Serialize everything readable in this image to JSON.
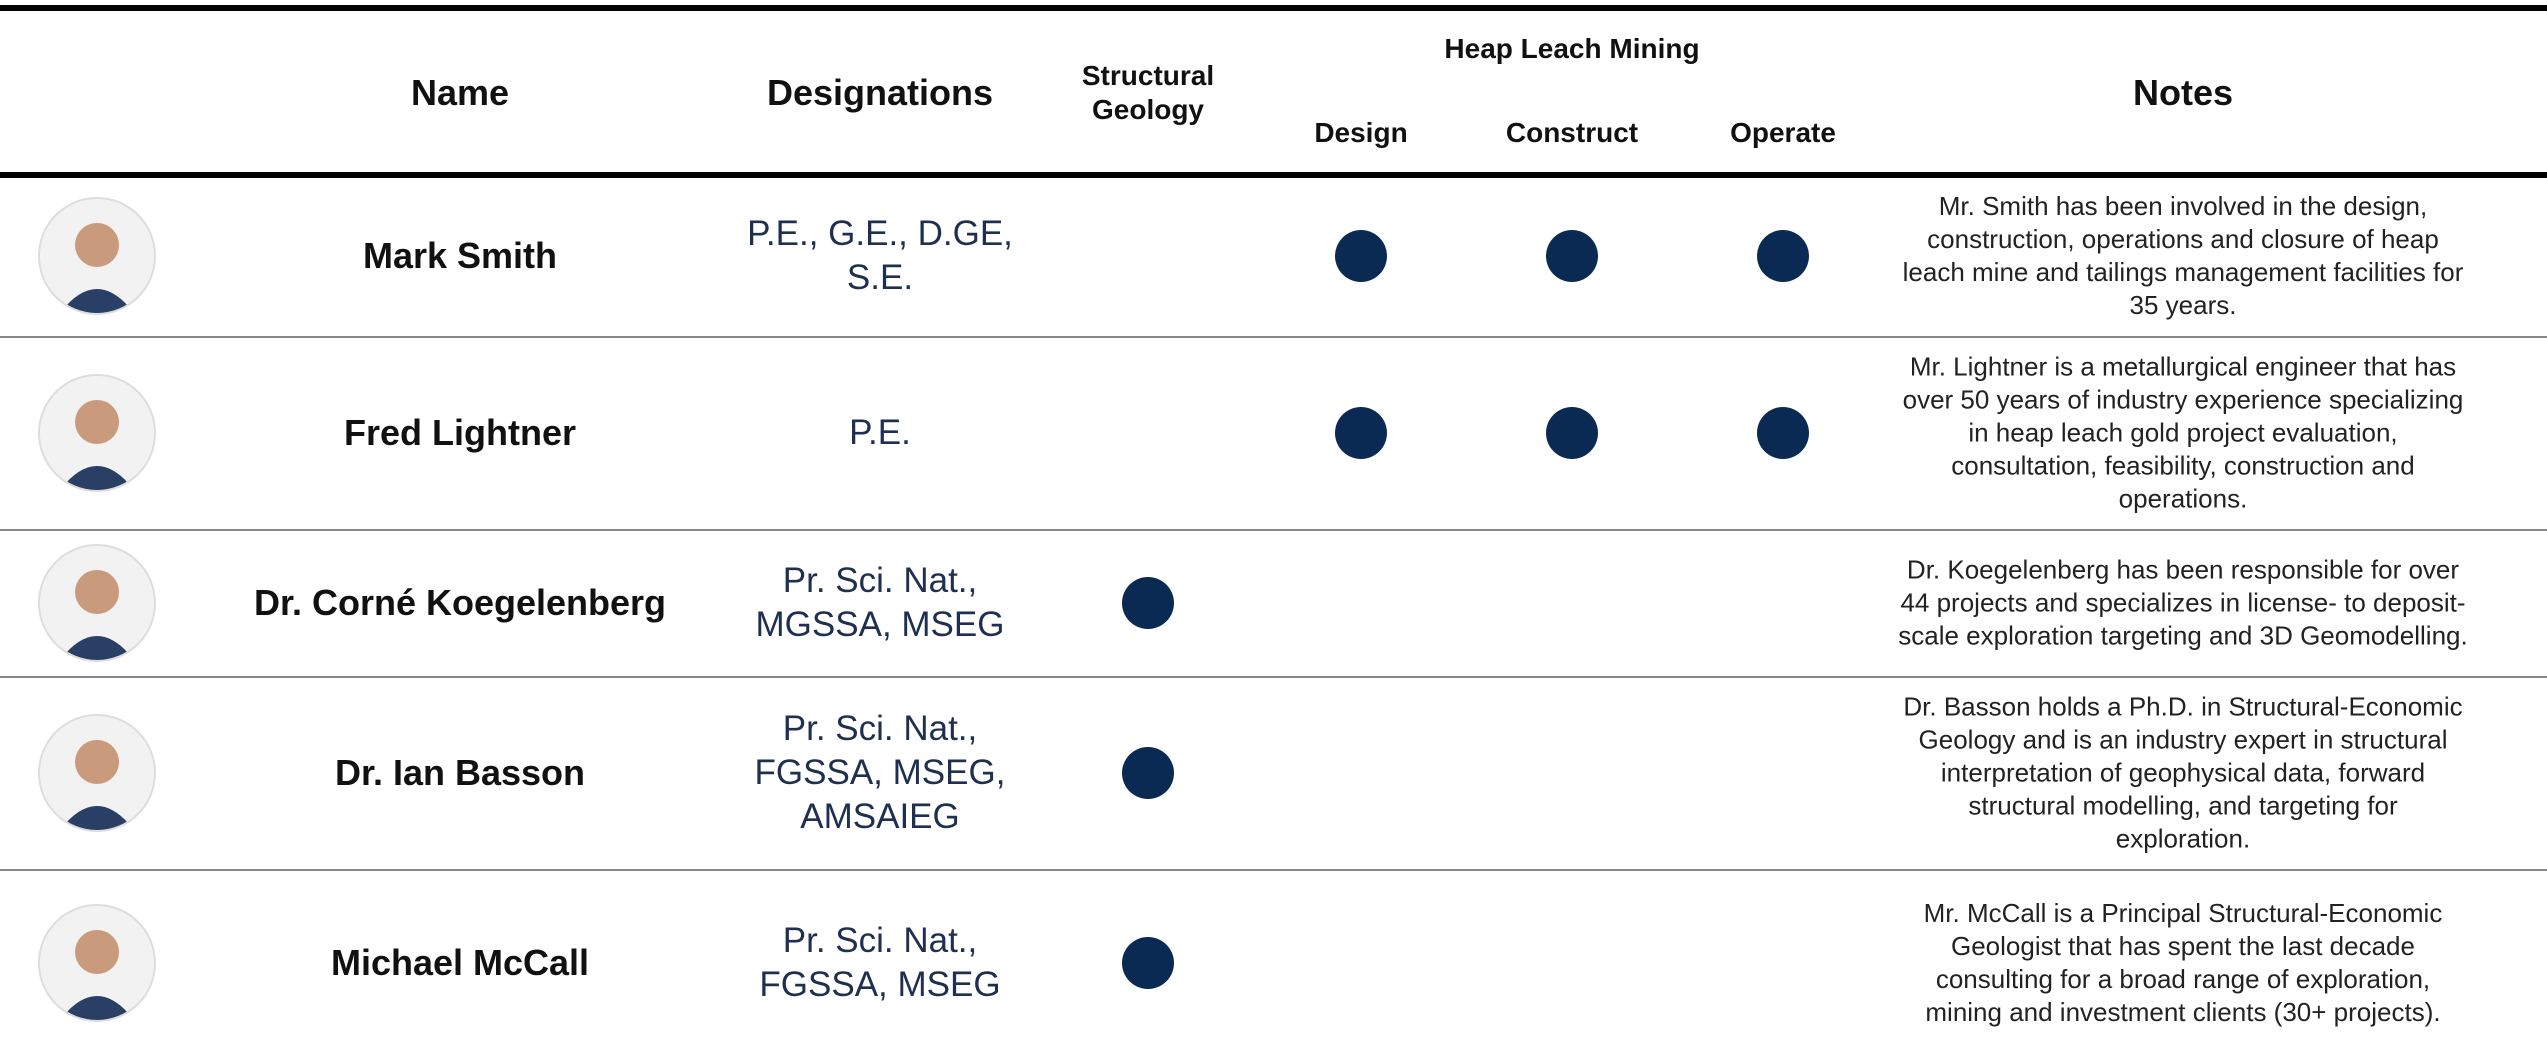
{
  "header": {
    "name": "Name",
    "designations": "Designations",
    "structural_geology": "Structural Geology",
    "heap_leach_mining": "Heap Leach Mining",
    "design": "Design",
    "construct": "Construct",
    "operate": "Operate",
    "notes": "Notes"
  },
  "rows": [
    {
      "name": "Mark Smith",
      "designations": "P.E., G.E., D.GE, S.E.",
      "structural_geology": false,
      "design": true,
      "construct": true,
      "operate": true,
      "notes": "Mr. Smith has been involved in the design, construction, operations and closure of heap leach mine and tailings management facilities for 35 years."
    },
    {
      "name": "Fred Lightner",
      "designations": "P.E.",
      "structural_geology": false,
      "design": true,
      "construct": true,
      "operate": true,
      "notes": "Mr. Lightner is a metallurgical engineer that has over 50 years of industry experience specializing in heap leach gold project evaluation, consultation, feasibility, construction and operations."
    },
    {
      "name": "Dr. Corné Koegelenberg",
      "designations": "Pr. Sci. Nat., MGSSA, MSEG",
      "structural_geology": true,
      "design": false,
      "construct": false,
      "operate": false,
      "notes": "Dr. Koegelenberg has been responsible for over 44 projects and specializes in license- to deposit-scale exploration targeting and 3D Geomodelling."
    },
    {
      "name": "Dr. Ian Basson",
      "designations": "Pr. Sci. Nat., FGSSA, MSEG, AMSAIEG",
      "structural_geology": true,
      "design": false,
      "construct": false,
      "operate": false,
      "notes": "Dr. Basson holds a Ph.D. in Structural-Economic Geology and is an industry expert in structural interpretation of geophysical data, forward structural modelling, and targeting for exploration."
    },
    {
      "name": "Michael McCall",
      "designations": "Pr. Sci. Nat., FGSSA, MSEG",
      "structural_geology": true,
      "design": false,
      "construct": false,
      "operate": false,
      "notes": "Mr. McCall is a Principal Structural-Economic Geologist that has spent the last decade consulting for a broad range of exploration, mining and investment clients (30+ projects)."
    }
  ]
}
